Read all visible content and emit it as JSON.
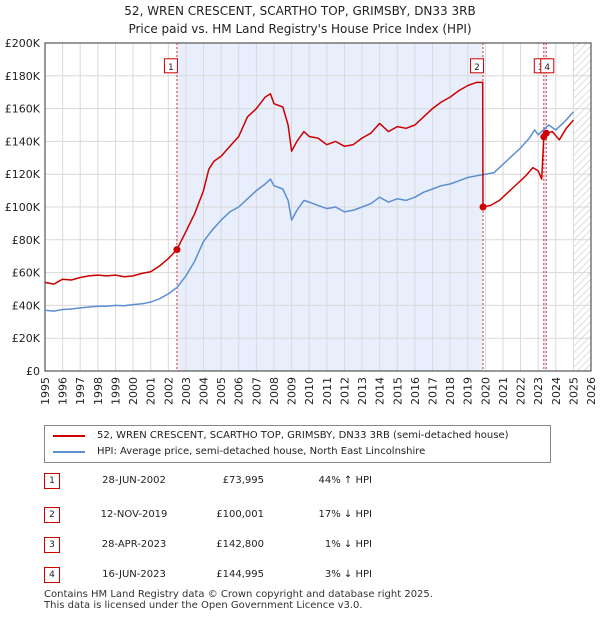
{
  "header": {
    "title_line1": "52, WREN CRESCENT, SCARTHO TOP, GRIMSBY, DN33 3RB",
    "title_line2": "Price paid vs. HM Land Registry's House Price Index (HPI)"
  },
  "chart_data": {
    "type": "line",
    "title": "52, WREN CRESCENT, SCARTHO TOP, GRIMSBY, DN33 3RB",
    "subtitle": "Price paid vs. HM Land Registry's House Price Index (HPI)",
    "xlim": [
      1995,
      2026
    ],
    "ylim": [
      0,
      200000
    ],
    "x_ticks": [
      1995,
      1996,
      1997,
      1998,
      1999,
      2000,
      2001,
      2002,
      2003,
      2004,
      2005,
      2006,
      2007,
      2008,
      2009,
      2010,
      2011,
      2012,
      2013,
      2014,
      2015,
      2016,
      2017,
      2018,
      2019,
      2020,
      2021,
      2022,
      2023,
      2024,
      2025,
      2026
    ],
    "y_ticks": [
      0,
      20000,
      40000,
      60000,
      80000,
      100000,
      120000,
      140000,
      160000,
      180000,
      200000
    ],
    "y_tick_labels": [
      "£0",
      "£20K",
      "£40K",
      "£60K",
      "£80K",
      "£100K",
      "£120K",
      "£140K",
      "£160K",
      "£180K",
      "£200K"
    ],
    "shaded_ranges": [
      [
        2002.49,
        2019.87
      ],
      [
        2023.32,
        2023.46
      ]
    ],
    "future_hatch_from": 2025.0,
    "series": [
      {
        "name": "52, WREN CRESCENT, SCARTHO TOP, GRIMSBY, DN33 3RB (semi-detached house)",
        "color": "#cc0000",
        "points": [
          [
            1995.0,
            54000
          ],
          [
            1995.5,
            53000
          ],
          [
            1996.0,
            56000
          ],
          [
            1996.5,
            55500
          ],
          [
            1997.0,
            57000
          ],
          [
            1997.5,
            58000
          ],
          [
            1998.0,
            58500
          ],
          [
            1998.5,
            58000
          ],
          [
            1999.0,
            58500
          ],
          [
            1999.5,
            57500
          ],
          [
            2000.0,
            58000
          ],
          [
            2000.5,
            59500
          ],
          [
            2001.0,
            60500
          ],
          [
            2001.5,
            64000
          ],
          [
            2002.0,
            68500
          ],
          [
            2002.49,
            73995
          ],
          [
            2003.0,
            85000
          ],
          [
            2003.5,
            96000
          ],
          [
            2004.0,
            110000
          ],
          [
            2004.3,
            123000
          ],
          [
            2004.6,
            128000
          ],
          [
            2005.0,
            131000
          ],
          [
            2005.5,
            137000
          ],
          [
            2006.0,
            143000
          ],
          [
            2006.5,
            155000
          ],
          [
            2007.0,
            160000
          ],
          [
            2007.5,
            167000
          ],
          [
            2007.8,
            169000
          ],
          [
            2008.0,
            163000
          ],
          [
            2008.5,
            161000
          ],
          [
            2008.8,
            150000
          ],
          [
            2009.0,
            134000
          ],
          [
            2009.3,
            140000
          ],
          [
            2009.7,
            146000
          ],
          [
            2010.0,
            143000
          ],
          [
            2010.5,
            142000
          ],
          [
            2011.0,
            138000
          ],
          [
            2011.5,
            140000
          ],
          [
            2012.0,
            137000
          ],
          [
            2012.5,
            138000
          ],
          [
            2013.0,
            142000
          ],
          [
            2013.5,
            145000
          ],
          [
            2014.0,
            151000
          ],
          [
            2014.5,
            146000
          ],
          [
            2015.0,
            149000
          ],
          [
            2015.5,
            148000
          ],
          [
            2016.0,
            150000
          ],
          [
            2016.5,
            155000
          ],
          [
            2017.0,
            160000
          ],
          [
            2017.5,
            164000
          ],
          [
            2018.0,
            167000
          ],
          [
            2018.5,
            171000
          ],
          [
            2019.0,
            174000
          ],
          [
            2019.5,
            176000
          ],
          [
            2019.85,
            176000
          ],
          [
            2019.87,
            100001
          ],
          [
            2020.3,
            101000
          ],
          [
            2020.8,
            104000
          ],
          [
            2021.3,
            109000
          ],
          [
            2021.8,
            114000
          ],
          [
            2022.3,
            119000
          ],
          [
            2022.7,
            124000
          ],
          [
            2023.0,
            122000
          ],
          [
            2023.2,
            117000
          ],
          [
            2023.32,
            142800
          ],
          [
            2023.46,
            144995
          ],
          [
            2023.8,
            146000
          ],
          [
            2024.2,
            141000
          ],
          [
            2024.6,
            148000
          ],
          [
            2025.0,
            153000
          ]
        ]
      },
      {
        "name": "HPI: Average price, semi-detached house, North East Lincolnshire",
        "color": "#5b8fd1",
        "points": [
          [
            1995.0,
            37000
          ],
          [
            1995.5,
            36500
          ],
          [
            1996.0,
            37500
          ],
          [
            1996.5,
            37800
          ],
          [
            1997.0,
            38500
          ],
          [
            1997.5,
            39000
          ],
          [
            1998.0,
            39500
          ],
          [
            1998.5,
            39500
          ],
          [
            1999.0,
            40000
          ],
          [
            1999.5,
            39800
          ],
          [
            2000.0,
            40500
          ],
          [
            2000.5,
            41000
          ],
          [
            2001.0,
            42000
          ],
          [
            2001.5,
            44000
          ],
          [
            2002.0,
            47000
          ],
          [
            2002.5,
            51000
          ],
          [
            2003.0,
            58000
          ],
          [
            2003.5,
            67000
          ],
          [
            2004.0,
            79000
          ],
          [
            2004.5,
            86000
          ],
          [
            2005.0,
            92000
          ],
          [
            2005.5,
            97000
          ],
          [
            2006.0,
            100000
          ],
          [
            2006.5,
            105000
          ],
          [
            2007.0,
            110000
          ],
          [
            2007.5,
            114000
          ],
          [
            2007.8,
            117000
          ],
          [
            2008.0,
            113000
          ],
          [
            2008.5,
            111000
          ],
          [
            2008.8,
            104000
          ],
          [
            2009.0,
            92000
          ],
          [
            2009.3,
            98000
          ],
          [
            2009.7,
            104000
          ],
          [
            2010.0,
            103000
          ],
          [
            2010.5,
            101000
          ],
          [
            2011.0,
            99000
          ],
          [
            2011.5,
            100000
          ],
          [
            2012.0,
            97000
          ],
          [
            2012.5,
            98000
          ],
          [
            2013.0,
            100000
          ],
          [
            2013.5,
            102000
          ],
          [
            2014.0,
            106000
          ],
          [
            2014.5,
            103000
          ],
          [
            2015.0,
            105000
          ],
          [
            2015.5,
            104000
          ],
          [
            2016.0,
            106000
          ],
          [
            2016.5,
            109000
          ],
          [
            2017.0,
            111000
          ],
          [
            2017.5,
            113000
          ],
          [
            2018.0,
            114000
          ],
          [
            2018.5,
            116000
          ],
          [
            2019.0,
            118000
          ],
          [
            2019.5,
            119000
          ],
          [
            2020.0,
            120000
          ],
          [
            2020.5,
            121000
          ],
          [
            2021.0,
            126000
          ],
          [
            2021.5,
            131000
          ],
          [
            2022.0,
            136000
          ],
          [
            2022.5,
            142000
          ],
          [
            2022.8,
            147000
          ],
          [
            2023.0,
            144000
          ],
          [
            2023.3,
            147000
          ],
          [
            2023.6,
            150000
          ],
          [
            2024.0,
            147000
          ],
          [
            2024.5,
            152000
          ],
          [
            2025.0,
            158000
          ]
        ]
      }
    ],
    "sale_markers": [
      {
        "label": "1",
        "x": 2002.49,
        "y": 73995
      },
      {
        "label": "2",
        "x": 2019.87,
        "y": 100001
      },
      {
        "label": "3",
        "x": 2023.32,
        "y": 142800
      },
      {
        "label": "4",
        "x": 2023.46,
        "y": 144995
      }
    ],
    "sale_label_value": 180000
  },
  "legend": {
    "property_label": "52, WREN CRESCENT, SCARTHO TOP, GRIMSBY, DN33 3RB (semi-detached house)",
    "hpi_label": "HPI: Average price, semi-detached house, North East Lincolnshire"
  },
  "transactions": [
    {
      "num": "1",
      "date": "28-JUN-2002",
      "price": "£73,995",
      "delta": "44% ↑ HPI"
    },
    {
      "num": "2",
      "date": "12-NOV-2019",
      "price": "£100,001",
      "delta": "17% ↓ HPI"
    },
    {
      "num": "3",
      "date": "28-APR-2023",
      "price": "£142,800",
      "delta": "1% ↓ HPI"
    },
    {
      "num": "4",
      "date": "16-JUN-2023",
      "price": "£144,995",
      "delta": "3% ↓ HPI"
    }
  ],
  "footer": {
    "line1": "Contains HM Land Registry data © Crown copyright and database right 2025.",
    "line2": "This data is licensed under the Open Government Licence v3.0."
  },
  "colors": {
    "property_line": "#cc0000",
    "hpi_line": "#5b8fd1",
    "shade": "#e8eefb",
    "grid": "#d9d9d9"
  }
}
